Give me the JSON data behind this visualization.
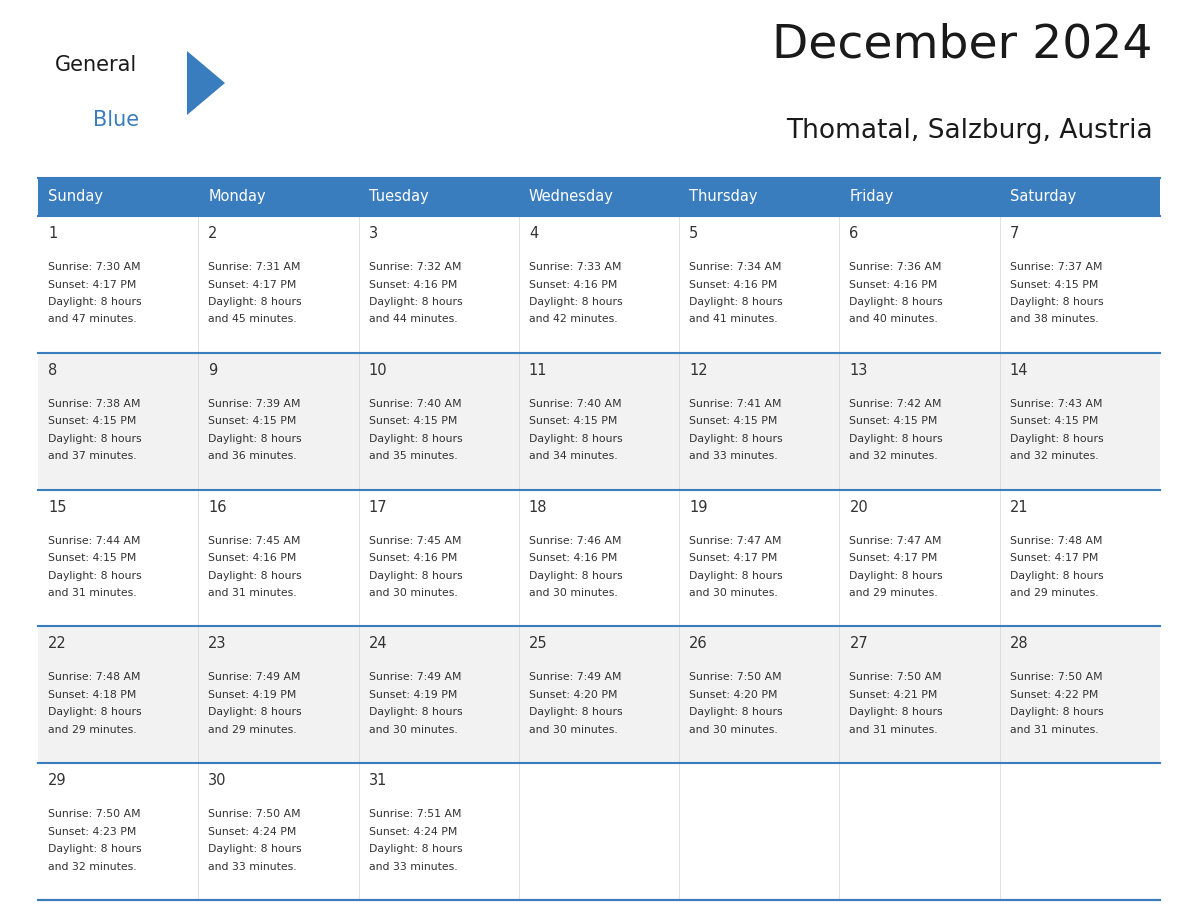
{
  "title": "December 2024",
  "subtitle": "Thomatal, Salzburg, Austria",
  "header_color": "#3a7dbf",
  "header_text_color": "#ffffff",
  "border_color": "#3a7dbf",
  "text_color": "#333333",
  "day_headers": [
    "Sunday",
    "Monday",
    "Tuesday",
    "Wednesday",
    "Thursday",
    "Friday",
    "Saturday"
  ],
  "weeks": [
    [
      {
        "day": "1",
        "sunrise": "7:30 AM",
        "sunset": "4:17 PM",
        "daylight_h": "8 hours",
        "daylight_m": "47 minutes."
      },
      {
        "day": "2",
        "sunrise": "7:31 AM",
        "sunset": "4:17 PM",
        "daylight_h": "8 hours",
        "daylight_m": "45 minutes."
      },
      {
        "day": "3",
        "sunrise": "7:32 AM",
        "sunset": "4:16 PM",
        "daylight_h": "8 hours",
        "daylight_m": "44 minutes."
      },
      {
        "day": "4",
        "sunrise": "7:33 AM",
        "sunset": "4:16 PM",
        "daylight_h": "8 hours",
        "daylight_m": "42 minutes."
      },
      {
        "day": "5",
        "sunrise": "7:34 AM",
        "sunset": "4:16 PM",
        "daylight_h": "8 hours",
        "daylight_m": "41 minutes."
      },
      {
        "day": "6",
        "sunrise": "7:36 AM",
        "sunset": "4:16 PM",
        "daylight_h": "8 hours",
        "daylight_m": "40 minutes."
      },
      {
        "day": "7",
        "sunrise": "7:37 AM",
        "sunset": "4:15 PM",
        "daylight_h": "8 hours",
        "daylight_m": "38 minutes."
      }
    ],
    [
      {
        "day": "8",
        "sunrise": "7:38 AM",
        "sunset": "4:15 PM",
        "daylight_h": "8 hours",
        "daylight_m": "37 minutes."
      },
      {
        "day": "9",
        "sunrise": "7:39 AM",
        "sunset": "4:15 PM",
        "daylight_h": "8 hours",
        "daylight_m": "36 minutes."
      },
      {
        "day": "10",
        "sunrise": "7:40 AM",
        "sunset": "4:15 PM",
        "daylight_h": "8 hours",
        "daylight_m": "35 minutes."
      },
      {
        "day": "11",
        "sunrise": "7:40 AM",
        "sunset": "4:15 PM",
        "daylight_h": "8 hours",
        "daylight_m": "34 minutes."
      },
      {
        "day": "12",
        "sunrise": "7:41 AM",
        "sunset": "4:15 PM",
        "daylight_h": "8 hours",
        "daylight_m": "33 minutes."
      },
      {
        "day": "13",
        "sunrise": "7:42 AM",
        "sunset": "4:15 PM",
        "daylight_h": "8 hours",
        "daylight_m": "32 minutes."
      },
      {
        "day": "14",
        "sunrise": "7:43 AM",
        "sunset": "4:15 PM",
        "daylight_h": "8 hours",
        "daylight_m": "32 minutes."
      }
    ],
    [
      {
        "day": "15",
        "sunrise": "7:44 AM",
        "sunset": "4:15 PM",
        "daylight_h": "8 hours",
        "daylight_m": "31 minutes."
      },
      {
        "day": "16",
        "sunrise": "7:45 AM",
        "sunset": "4:16 PM",
        "daylight_h": "8 hours",
        "daylight_m": "31 minutes."
      },
      {
        "day": "17",
        "sunrise": "7:45 AM",
        "sunset": "4:16 PM",
        "daylight_h": "8 hours",
        "daylight_m": "30 minutes."
      },
      {
        "day": "18",
        "sunrise": "7:46 AM",
        "sunset": "4:16 PM",
        "daylight_h": "8 hours",
        "daylight_m": "30 minutes."
      },
      {
        "day": "19",
        "sunrise": "7:47 AM",
        "sunset": "4:17 PM",
        "daylight_h": "8 hours",
        "daylight_m": "30 minutes."
      },
      {
        "day": "20",
        "sunrise": "7:47 AM",
        "sunset": "4:17 PM",
        "daylight_h": "8 hours",
        "daylight_m": "29 minutes."
      },
      {
        "day": "21",
        "sunrise": "7:48 AM",
        "sunset": "4:17 PM",
        "daylight_h": "8 hours",
        "daylight_m": "29 minutes."
      }
    ],
    [
      {
        "day": "22",
        "sunrise": "7:48 AM",
        "sunset": "4:18 PM",
        "daylight_h": "8 hours",
        "daylight_m": "29 minutes."
      },
      {
        "day": "23",
        "sunrise": "7:49 AM",
        "sunset": "4:19 PM",
        "daylight_h": "8 hours",
        "daylight_m": "29 minutes."
      },
      {
        "day": "24",
        "sunrise": "7:49 AM",
        "sunset": "4:19 PM",
        "daylight_h": "8 hours",
        "daylight_m": "30 minutes."
      },
      {
        "day": "25",
        "sunrise": "7:49 AM",
        "sunset": "4:20 PM",
        "daylight_h": "8 hours",
        "daylight_m": "30 minutes."
      },
      {
        "day": "26",
        "sunrise": "7:50 AM",
        "sunset": "4:20 PM",
        "daylight_h": "8 hours",
        "daylight_m": "30 minutes."
      },
      {
        "day": "27",
        "sunrise": "7:50 AM",
        "sunset": "4:21 PM",
        "daylight_h": "8 hours",
        "daylight_m": "31 minutes."
      },
      {
        "day": "28",
        "sunrise": "7:50 AM",
        "sunset": "4:22 PM",
        "daylight_h": "8 hours",
        "daylight_m": "31 minutes."
      }
    ],
    [
      {
        "day": "29",
        "sunrise": "7:50 AM",
        "sunset": "4:23 PM",
        "daylight_h": "8 hours",
        "daylight_m": "32 minutes."
      },
      {
        "day": "30",
        "sunrise": "7:50 AM",
        "sunset": "4:24 PM",
        "daylight_h": "8 hours",
        "daylight_m": "33 minutes."
      },
      {
        "day": "31",
        "sunrise": "7:51 AM",
        "sunset": "4:24 PM",
        "daylight_h": "8 hours",
        "daylight_m": "33 minutes."
      },
      null,
      null,
      null,
      null
    ]
  ]
}
